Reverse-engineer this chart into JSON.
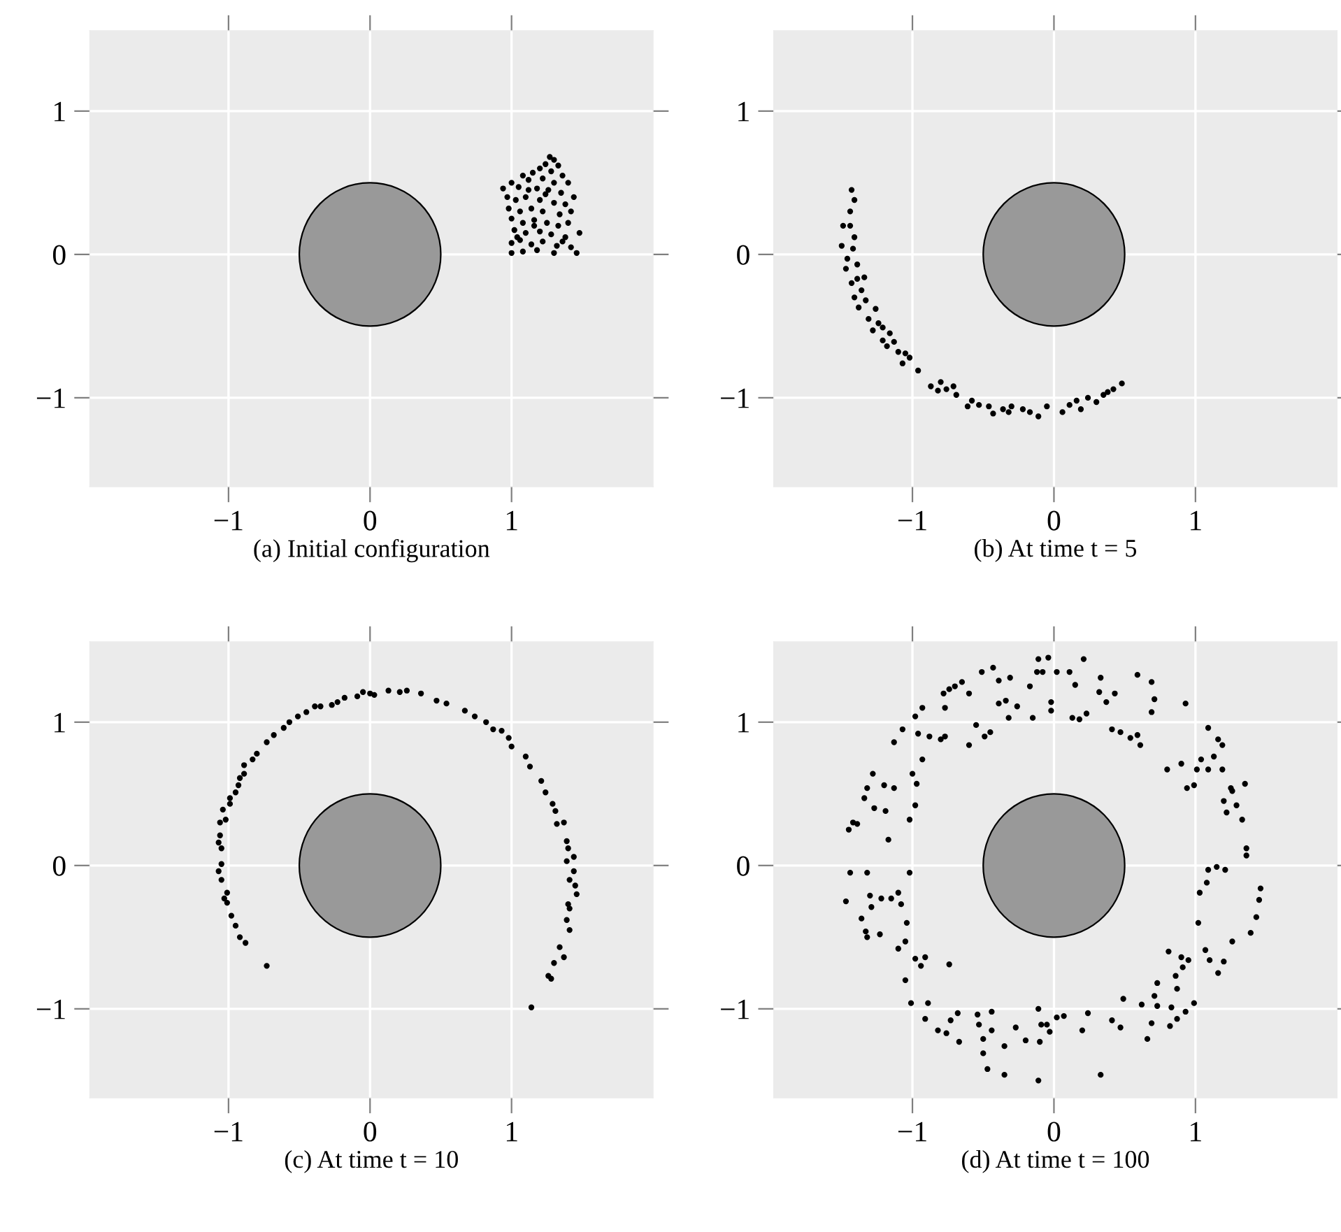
{
  "chart_data": [
    {
      "type": "scatter",
      "title": "(a) Initial configuration",
      "xlim": [
        -1.98,
        2.0
      ],
      "ylim": [
        -1.62,
        1.56
      ],
      "xticks": [
        -1,
        0,
        1
      ],
      "yticks": [
        -1,
        0,
        1
      ],
      "grid": true,
      "marker": "circle",
      "series": [
        {
          "color": "#000000",
          "x": [
            1.27,
            1.3,
            1.24,
            1.33,
            1.2,
            1.28,
            1.36,
            1.15,
            1.08,
            1.12,
            1.22,
            1.3,
            1.4,
            0.94,
            1.0,
            1.05,
            1.18,
            1.26,
            1.35,
            1.44,
            0.97,
            1.03,
            1.1,
            1.2,
            1.3,
            1.38,
            0.98,
            1.06,
            1.14,
            1.22,
            1.34,
            1.42,
            1.0,
            1.08,
            1.16,
            1.25,
            1.33,
            1.4,
            1.02,
            1.1,
            1.2,
            1.28,
            1.38,
            1.48,
            1.0,
            1.06,
            1.14,
            1.22,
            1.32,
            1.42,
            1.0,
            1.08,
            1.18,
            1.3,
            1.46,
            1.04,
            1.36,
            1.12,
            1.24,
            1.16
          ],
          "values": [
            0.68,
            0.66,
            0.63,
            0.62,
            0.6,
            0.58,
            0.55,
            0.57,
            0.55,
            0.52,
            0.53,
            0.5,
            0.5,
            0.46,
            0.5,
            0.47,
            0.46,
            0.45,
            0.43,
            0.4,
            0.4,
            0.38,
            0.4,
            0.38,
            0.36,
            0.35,
            0.32,
            0.3,
            0.32,
            0.3,
            0.28,
            0.3,
            0.25,
            0.22,
            0.24,
            0.22,
            0.2,
            0.22,
            0.17,
            0.15,
            0.16,
            0.14,
            0.12,
            0.15,
            0.08,
            0.1,
            0.07,
            0.09,
            0.06,
            0.05,
            0.01,
            0.02,
            0.03,
            0.01,
            0.01,
            0.12,
            0.09,
            0.45,
            0.42,
            0.2
          ]
        }
      ]
    },
    {
      "type": "scatter",
      "title": "(b) At time t = 5",
      "xlim": [
        -1.98,
        2.0
      ],
      "ylim": [
        -1.62,
        1.56
      ],
      "xticks": [
        -1,
        0,
        1
      ],
      "yticks": [
        -1,
        0,
        1
      ],
      "grid": true,
      "marker": "circle",
      "series": [
        {
          "color": "#000000",
          "x": [
            -1.43,
            -1.41,
            -1.44,
            -1.49,
            -1.41,
            -1.5,
            -1.42,
            -1.46,
            -1.39,
            -1.47,
            -1.34,
            -1.43,
            -1.36,
            -1.41,
            -1.33,
            -1.38,
            -1.26,
            -1.31,
            -1.24,
            -1.28,
            -1.16,
            -1.21,
            -1.13,
            -1.18,
            -1.1,
            -1.05,
            -1.02,
            -1.07,
            -0.96,
            -0.87,
            -0.8,
            -0.76,
            -0.71,
            -0.69,
            -0.58,
            -0.61,
            -0.53,
            -0.46,
            -0.43,
            -0.36,
            -0.3,
            -0.22,
            -0.17,
            -0.11,
            -0.05,
            0.06,
            0.11,
            0.16,
            0.24,
            0.3,
            0.35,
            0.42,
            0.48,
            0.38,
            0.19,
            -1.44,
            -1.39,
            -1.21,
            -0.82,
            -0.32
          ],
          "values": [
            0.45,
            0.38,
            0.3,
            0.2,
            0.12,
            0.06,
            0.04,
            -0.03,
            -0.07,
            -0.1,
            -0.16,
            -0.2,
            -0.25,
            -0.3,
            -0.32,
            -0.37,
            -0.38,
            -0.45,
            -0.48,
            -0.53,
            -0.55,
            -0.6,
            -0.61,
            -0.64,
            -0.68,
            -0.69,
            -0.72,
            -0.76,
            -0.81,
            -0.92,
            -0.89,
            -0.94,
            -0.92,
            -0.98,
            -1.02,
            -1.06,
            -1.05,
            -1.06,
            -1.11,
            -1.08,
            -1.06,
            -1.08,
            -1.1,
            -1.13,
            -1.06,
            -1.1,
            -1.05,
            -1.02,
            -1.0,
            -1.03,
            -0.98,
            -0.94,
            -0.9,
            -0.96,
            -1.08,
            0.2,
            -0.17,
            -0.51,
            -0.95,
            -1.1
          ]
        }
      ]
    },
    {
      "type": "scatter",
      "title": "(c) At time t = 10",
      "xlim": [
        -1.98,
        2.0
      ],
      "ylim": [
        -1.62,
        1.56
      ],
      "xticks": [
        -1,
        0,
        1
      ],
      "yticks": [
        -1,
        0,
        1
      ],
      "grid": true,
      "marker": "circle",
      "series": [
        {
          "color": "#000000",
          "x": [
            -0.73,
            -0.88,
            -0.92,
            -0.95,
            -0.98,
            -1.01,
            -1.03,
            -1.01,
            -1.05,
            -1.07,
            -1.05,
            -1.05,
            -1.07,
            -1.06,
            -1.06,
            -1.02,
            -1.04,
            -0.99,
            -0.99,
            -0.95,
            -0.93,
            -0.92,
            -0.89,
            -0.89,
            -0.83,
            -0.8,
            -0.73,
            -0.68,
            -0.61,
            -0.57,
            -0.51,
            -0.45,
            -0.39,
            -0.35,
            -0.27,
            -0.23,
            -0.18,
            -0.09,
            -0.05,
            0.0,
            0.03,
            0.13,
            0.21,
            0.26,
            0.36,
            0.47,
            0.54,
            0.67,
            0.74,
            0.82,
            0.87,
            0.93,
            0.98,
            1.0,
            1.1,
            1.13,
            1.21,
            1.24,
            1.29,
            1.31,
            1.32,
            1.37,
            1.39,
            1.4,
            1.44,
            1.39,
            1.44,
            1.41,
            1.45,
            1.46,
            1.4,
            1.41,
            1.39,
            1.41,
            1.34,
            1.37,
            1.3,
            1.26,
            1.28,
            1.14
          ],
          "values": [
            -0.7,
            -0.54,
            -0.5,
            -0.42,
            -0.35,
            -0.26,
            -0.23,
            -0.19,
            -0.1,
            -0.04,
            0.01,
            0.12,
            0.16,
            0.21,
            0.3,
            0.32,
            0.39,
            0.43,
            0.47,
            0.51,
            0.56,
            0.61,
            0.64,
            0.7,
            0.74,
            0.78,
            0.86,
            0.91,
            0.96,
            1.0,
            1.04,
            1.07,
            1.11,
            1.11,
            1.12,
            1.14,
            1.17,
            1.18,
            1.21,
            1.2,
            1.19,
            1.22,
            1.21,
            1.22,
            1.2,
            1.15,
            1.13,
            1.08,
            1.04,
            1.0,
            0.95,
            0.94,
            0.89,
            0.83,
            0.76,
            0.69,
            0.59,
            0.51,
            0.43,
            0.38,
            0.29,
            0.3,
            0.17,
            0.12,
            0.06,
            0.03,
            -0.04,
            -0.1,
            -0.14,
            -0.2,
            -0.27,
            -0.3,
            -0.38,
            -0.45,
            -0.57,
            -0.64,
            -0.68,
            -0.77,
            -0.79,
            -0.99
          ]
        }
      ]
    },
    {
      "type": "scatter",
      "title": "(d) At time t = 100",
      "xlim": [
        -1.98,
        2.0
      ],
      "ylim": [
        -1.62,
        1.56
      ],
      "xticks": [
        -1,
        0,
        1
      ],
      "yticks": [
        -1,
        0,
        1
      ],
      "grid": true,
      "marker": "circle",
      "series": [
        {
          "color": "#000000",
          "x": [
            -0.11,
            -0.04,
            0.21,
            -0.12,
            -0.08,
            0.02,
            0.11,
            0.15,
            0.33,
            0.59,
            0.69,
            0.71,
            0.69,
            0.93,
            0.43,
            0.37,
            0.32,
            0.23,
            0.13,
            0.18,
            -0.02,
            -0.02,
            -0.17,
            -0.15,
            -0.26,
            -0.31,
            -0.43,
            -0.51,
            -0.39,
            -0.39,
            -0.34,
            -0.32,
            -0.6,
            -0.65,
            -0.7,
            -0.74,
            -0.78,
            -0.77,
            -0.93,
            -0.98,
            -1.07,
            -1.13,
            -0.96,
            -0.88,
            -0.77,
            -0.8,
            -0.6,
            -0.55,
            -0.49,
            -0.45,
            -0.93,
            -1.0,
            -0.97,
            -0.98,
            -1.02,
            -1.28,
            -1.32,
            -1.34,
            -1.2,
            -1.13,
            -1.27,
            -1.19,
            -1.17,
            -1.39,
            -1.02,
            -1.32,
            -1.3,
            -1.22,
            -1.15,
            -1.1,
            -1.08,
            -1.29,
            -1.36,
            -1.33,
            -1.23,
            -1.32,
            -1.04,
            -1.05,
            -1.1,
            -0.98,
            -0.91,
            -0.94,
            -0.74,
            -1.05,
            -1.01,
            -0.89,
            -0.91,
            -0.82,
            -0.76,
            -0.73,
            -0.68,
            -0.67,
            -0.54,
            -0.53,
            -0.5,
            -0.5,
            -0.47,
            -0.44,
            -0.44,
            -0.35,
            -0.35,
            -0.27,
            -0.2,
            -0.11,
            -0.09,
            -0.05,
            -0.03,
            -0.1,
            -0.11,
            0.02,
            0.07,
            0.2,
            0.24,
            0.33,
            0.41,
            0.47,
            0.49,
            0.62,
            0.66,
            0.69,
            0.71,
            0.73,
            0.73,
            0.81,
            0.82,
            0.83,
            0.86,
            0.87,
            0.87,
            0.9,
            0.91,
            0.93,
            0.95,
            0.99,
            1.02,
            1.07,
            1.1,
            1.16,
            1.2,
            1.26,
            1.39,
            1.43,
            1.45,
            1.46,
            1.03,
            1.08,
            1.09,
            1.15,
            1.21,
            1.36,
            1.36,
            1.33,
            1.22,
            1.29,
            1.26,
            1.25,
            1.35,
            1.2,
            0.99,
            0.94,
            1.01,
            1.09,
            1.19,
            1.04,
            1.13,
            0.9,
            0.8,
            1.16,
            1.19,
            1.09,
            0.41,
            0.47,
            0.54,
            0.59,
            0.61,
            -1.45,
            -1.44,
            -1.47,
            -1.42
          ],
          "values": [
            1.44,
            1.45,
            1.44,
            1.35,
            1.35,
            1.35,
            1.35,
            1.26,
            1.31,
            1.33,
            1.28,
            1.16,
            1.07,
            1.13,
            1.2,
            1.14,
            1.21,
            1.06,
            1.03,
            1.02,
            1.14,
            1.08,
            1.25,
            1.03,
            1.11,
            1.31,
            1.38,
            1.35,
            1.29,
            1.13,
            1.15,
            1.03,
            1.2,
            1.28,
            1.25,
            1.23,
            1.2,
            1.1,
            1.1,
            1.04,
            0.95,
            0.86,
            0.92,
            0.9,
            0.9,
            0.88,
            0.84,
            0.98,
            0.9,
            0.93,
            0.74,
            0.64,
            0.57,
            0.42,
            0.32,
            0.64,
            0.54,
            0.47,
            0.56,
            0.54,
            0.4,
            0.38,
            0.18,
            0.29,
            -0.05,
            -0.05,
            -0.21,
            -0.23,
            -0.23,
            -0.19,
            -0.27,
            -0.29,
            -0.37,
            -0.46,
            -0.48,
            -0.5,
            -0.4,
            -0.53,
            -0.58,
            -0.65,
            -0.64,
            -0.7,
            -0.69,
            -0.8,
            -0.96,
            -0.96,
            -1.07,
            -1.15,
            -1.17,
            -1.08,
            -1.03,
            -1.23,
            -1.04,
            -1.11,
            -1.21,
            -1.31,
            -1.42,
            -1.02,
            -1.15,
            -1.26,
            -1.46,
            -1.13,
            -1.22,
            -1.0,
            -1.11,
            -1.11,
            -1.16,
            -1.23,
            -1.5,
            -1.06,
            -1.05,
            -1.15,
            -1.03,
            -1.46,
            -1.08,
            -1.13,
            -0.93,
            -0.97,
            -1.21,
            -1.1,
            -0.91,
            -0.82,
            -0.98,
            -0.6,
            -1.12,
            -0.99,
            -0.77,
            -0.86,
            -1.07,
            -0.64,
            -0.71,
            -1.02,
            -0.66,
            -0.96,
            -0.4,
            -0.59,
            -0.66,
            -0.75,
            -0.67,
            -0.53,
            -0.47,
            -0.36,
            -0.24,
            -0.16,
            -0.19,
            -0.12,
            -0.03,
            -0.01,
            -0.03,
            0.12,
            0.07,
            0.32,
            0.37,
            0.42,
            0.52,
            0.54,
            0.57,
            0.45,
            0.56,
            0.54,
            0.67,
            0.67,
            0.67,
            0.74,
            0.76,
            0.71,
            0.67,
            0.88,
            0.84,
            0.96,
            0.95,
            0.93,
            0.89,
            0.91,
            0.84,
            0.25,
            -0.05,
            -0.25,
            0.3
          ]
        }
      ]
    }
  ]
}
